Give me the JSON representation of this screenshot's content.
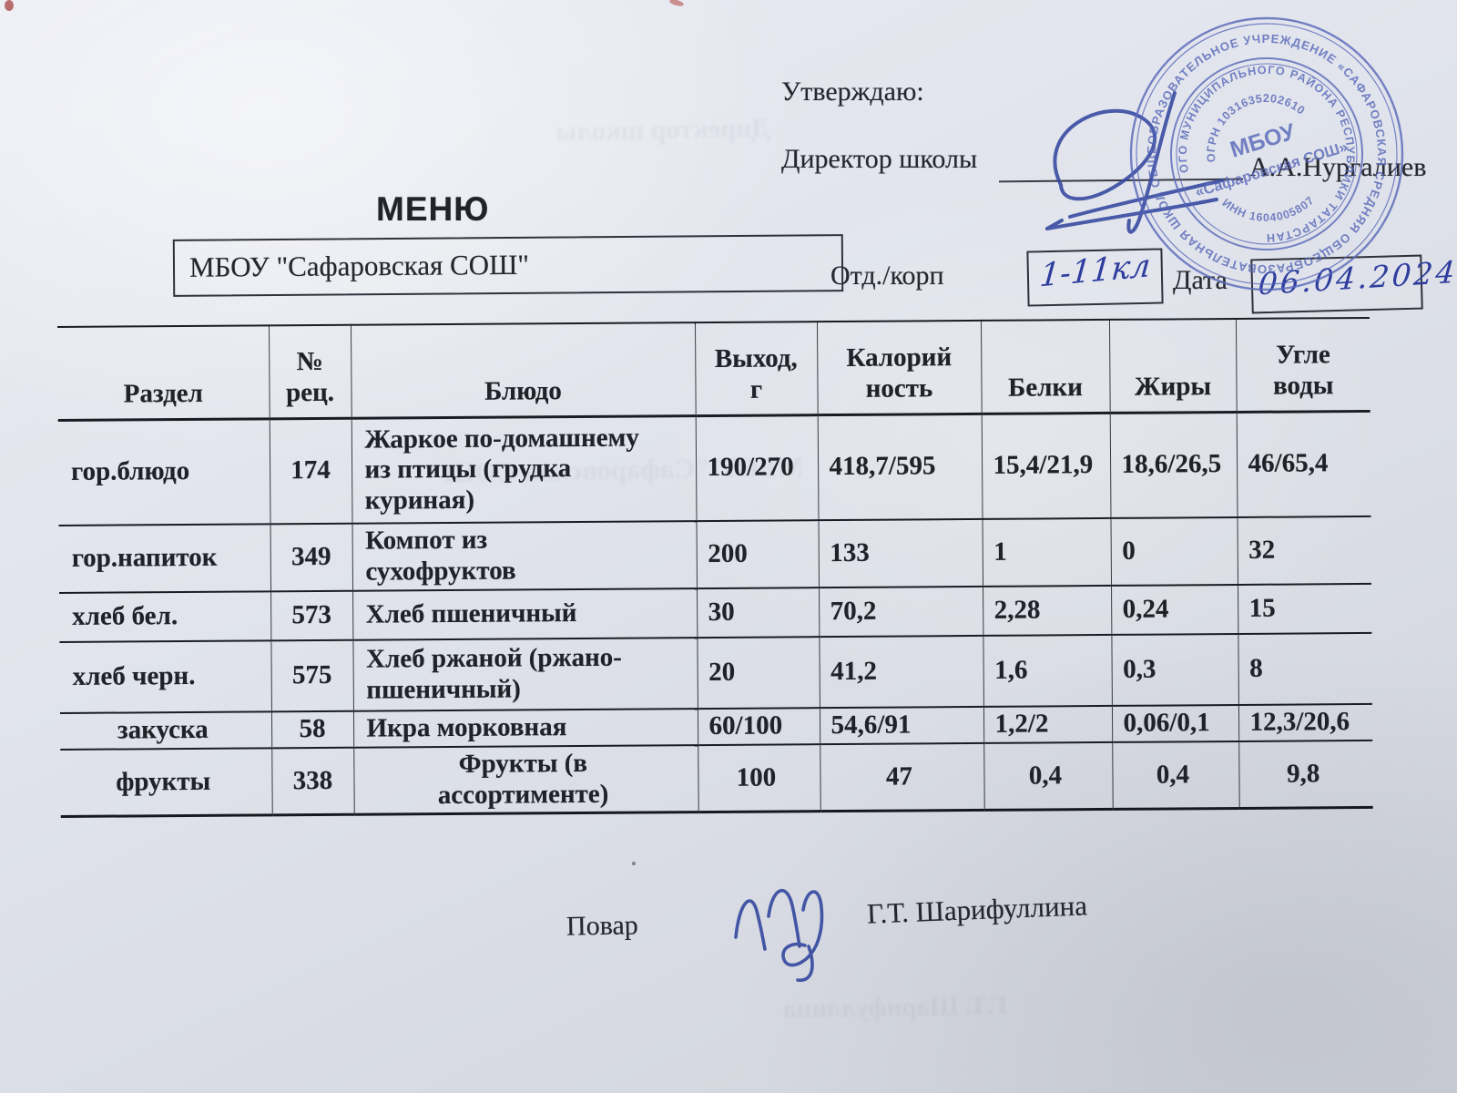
{
  "document": {
    "approve_label": "Утверждаю:",
    "director_label": "Директор школы",
    "director_name": "А.А.Нургалиев",
    "title": "МЕНЮ",
    "school_name": "МБОУ \"Сафаровская СОШ\"",
    "dept_label": "Отд./корп",
    "dept_value": "1-11кл",
    "date_label": "Дата",
    "date_value": "06.04.2024",
    "cook_label": "Повар",
    "cook_name": "Г.Т. Шарифуллина"
  },
  "stamp": {
    "outer_ring": "ОБЩЕОБРАЗОВАТЕЛЬНОЕ УЧРЕЖДЕНИЕ «САФАРОВСКАЯ СРЕДНЯЯ ОБЩЕОБРАЗОВАТЕЛЬНАЯ ШКОЛА» ",
    "inner_ring": "ОГО МУНИЦИПАЛЬНОГО РАЙОНА РЕСПУБЛИКИ ТАТАРСТАН",
    "ogrn": "ОГРН 1031635202610",
    "inn": "ИНН 1604005807",
    "center_line1": "МБОУ",
    "center_line2": "«Сафаровская СОШ»"
  },
  "menu_table": {
    "columns": [
      "Раздел",
      "№\nрец.",
      "Блюдо",
      "Выход,\nг",
      "Калорий\nность",
      "Белки",
      "Жиры",
      "Угле\nводы"
    ],
    "rows": [
      {
        "section": "гор.блюдо",
        "recipe_no": "174",
        "dish": "Жаркое по-домашнему\nиз птицы (грудка\nкуриная)",
        "output_g": "190/270",
        "calories": "418,7/595",
        "proteins": "15,4/21,9",
        "fats": "18,6/26,5",
        "carbs": "46/65,4"
      },
      {
        "section": "гор.напиток",
        "recipe_no": "349",
        "dish": "Компот из\nсухофруктов",
        "output_g": "200",
        "calories": "133",
        "proteins": "1",
        "fats": "0",
        "carbs": "32"
      },
      {
        "section": "хлеб бел.",
        "recipe_no": "573",
        "dish": "Хлеб пшеничный",
        "output_g": "30",
        "calories": "70,2",
        "proteins": "2,28",
        "fats": "0,24",
        "carbs": "15"
      },
      {
        "section": "хлеб черн.",
        "recipe_no": "575",
        "dish": "Хлеб ржаной (ржано-\nпшеничный)",
        "output_g": "20",
        "calories": "41,2",
        "proteins": "1,6",
        "fats": "0,3",
        "carbs": "8"
      },
      {
        "section": "закуска",
        "recipe_no": "58",
        "dish": "Икра морковная",
        "output_g": "60/100",
        "calories": "54,6/91",
        "proteins": "1,2/2",
        "fats": "0,06/0,1",
        "carbs": "12,3/20,6"
      },
      {
        "section": "фрукты",
        "recipe_no": "338",
        "dish": "Фрукты (в\nассортименте)",
        "output_g": "100",
        "calories": "47",
        "proteins": "0,4",
        "fats": "0,4",
        "carbs": "9,8"
      }
    ]
  },
  "colors": {
    "paper": "#e0e3ea",
    "print_ink": "#24252b",
    "pen_blue": "#2e3d9e",
    "stamp_blue": "#5767b8"
  }
}
